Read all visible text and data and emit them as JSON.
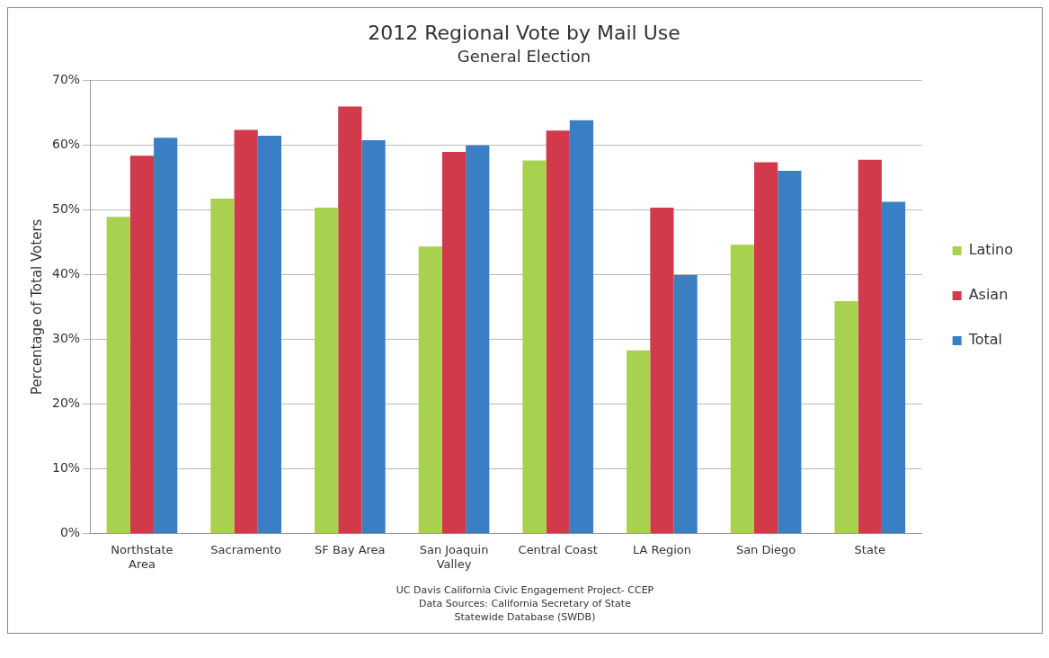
{
  "chart_data": {
    "type": "bar",
    "title": "2012 Regional Vote by Mail Use",
    "subtitle": "General Election",
    "ylabel": "Percentage of Total Voters",
    "categories": [
      "Northstate Area",
      "Sacramento",
      "SF Bay Area",
      "San Joaquin Valley",
      "Central Coast",
      "LA Region",
      "San Diego",
      "State"
    ],
    "series": [
      {
        "name": "Latino",
        "color": "#a8d14f",
        "values": [
          48.9,
          51.7,
          50.3,
          44.3,
          57.6,
          28.3,
          44.6,
          35.9
        ]
      },
      {
        "name": "Asian",
        "color": "#d13a4a",
        "values": [
          58.3,
          62.3,
          65.9,
          58.9,
          62.2,
          50.3,
          57.3,
          57.7
        ]
      },
      {
        "name": "Total",
        "color": "#3a7fc4",
        "values": [
          61.1,
          61.4,
          60.7,
          59.9,
          63.8,
          39.9,
          56.0,
          51.2
        ]
      }
    ],
    "ylim": [
      0,
      70
    ],
    "yticks": [
      {
        "value": 0,
        "label": "0%"
      },
      {
        "value": 10,
        "label": "10%"
      },
      {
        "value": 20,
        "label": "20%"
      },
      {
        "value": 30,
        "label": "30%"
      },
      {
        "value": 40,
        "label": "40%"
      },
      {
        "value": 50,
        "label": "50%"
      },
      {
        "value": 60,
        "label": "60%"
      },
      {
        "value": 70,
        "label": "70%"
      }
    ],
    "grid": "y",
    "legend": "right",
    "annotations": [
      "UC Davis California Civic Engagement Project- CCEP",
      "Data Sources: California Secretary of State",
      "Statewide Database (SWDB)"
    ]
  }
}
